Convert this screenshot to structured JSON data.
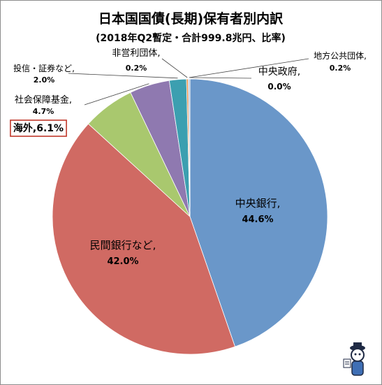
{
  "chart_data": {
    "type": "pie",
    "title": "日本国国債(長期)保有者別内訳",
    "subtitle": "(2018年Q2暫定・合計999.8兆円、比率)",
    "slices": [
      {
        "label": "中央銀行,",
        "pct_text": "44.6%",
        "value": 44.6,
        "color": "#6a97c9"
      },
      {
        "label": "民間銀行など,",
        "pct_text": "42.0%",
        "value": 42.0,
        "color": "#d06a63"
      },
      {
        "label": "海外,",
        "pct_text": "6.1%",
        "value": 6.1,
        "color": "#a9c86e"
      },
      {
        "label": "社会保障基金,",
        "pct_text": "4.7%",
        "value": 4.7,
        "color": "#8f79b0"
      },
      {
        "label": "投信・証券など,",
        "pct_text": "2.0%",
        "value": 2.0,
        "color": "#3c9fb0"
      },
      {
        "label": "非営利団体,",
        "pct_text": "0.2%",
        "value": 0.2,
        "color": "#e88a3e"
      },
      {
        "label": "地方公共団体,",
        "pct_text": "0.2%",
        "value": 0.2,
        "color": "#b7c7e0"
      },
      {
        "label": "中央政府,",
        "pct_text": "0.0%",
        "value": 0.0,
        "color": "#e8b5b0"
      }
    ]
  }
}
